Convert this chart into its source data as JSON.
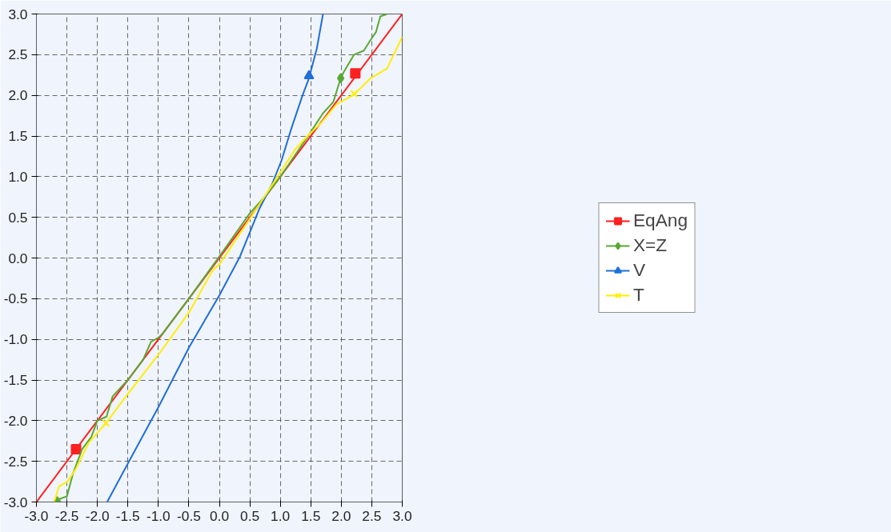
{
  "chart_data": {
    "type": "line",
    "xlim": [
      -3.0,
      3.0
    ],
    "ylim": [
      -3.0,
      3.0
    ],
    "xticks": [
      {
        "value": -3,
        "label": "-3.0"
      },
      {
        "value": -2.5,
        "label": "-2.5"
      },
      {
        "value": -2,
        "label": "-2.0"
      },
      {
        "value": -1.5,
        "label": "-1.5"
      },
      {
        "value": -1,
        "label": "-1.0"
      },
      {
        "value": -0.5,
        "label": "-0.5"
      },
      {
        "value": 0,
        "label": "0.0"
      },
      {
        "value": 0.5,
        "label": "0.5"
      },
      {
        "value": 1,
        "label": "1.0"
      },
      {
        "value": 1.5,
        "label": "1.5"
      },
      {
        "value": 2,
        "label": "2.0"
      },
      {
        "value": 2.5,
        "label": "2.5"
      },
      {
        "value": 3,
        "label": "3.0"
      }
    ],
    "yticks": [
      {
        "value": -3,
        "label": "-3.0"
      },
      {
        "value": -2.5,
        "label": "-2.5"
      },
      {
        "value": -2,
        "label": "-2.0"
      },
      {
        "value": -1.5,
        "label": "-1.5"
      },
      {
        "value": -1,
        "label": "-1.0"
      },
      {
        "value": -0.5,
        "label": "-0.5"
      },
      {
        "value": 0,
        "label": "0.0"
      },
      {
        "value": 0.5,
        "label": "0.5"
      },
      {
        "value": 1,
        "label": "1.0"
      },
      {
        "value": 1.5,
        "label": "1.5"
      },
      {
        "value": 2,
        "label": "2.0"
      },
      {
        "value": 2.5,
        "label": "2.5"
      },
      {
        "value": 3,
        "label": "3.0"
      }
    ],
    "grid": true,
    "legend": "right",
    "line_style": "solid",
    "series": [
      {
        "name": "EqAng",
        "color": "#ff2020",
        "x": [
          -3.0,
          3.0
        ],
        "values": [
          -3.0,
          3.0
        ]
      },
      {
        "type": "scatter",
        "marker": "square",
        "color": "#ff2020",
        "x": [
          -2.35,
          2.23
        ],
        "values": [
          -2.35,
          2.27
        ]
      },
      {
        "name": "X=Z",
        "color": "#5aa832",
        "x": [
          -2.7,
          -2.65,
          -2.5,
          -2.4,
          -2.25,
          -2.1,
          -2.0,
          -1.85,
          -1.75,
          -1.5,
          -1.25,
          -1.12,
          -1.0,
          -0.93,
          -0.5,
          0.0,
          0.5,
          0.8,
          1.0,
          1.2,
          1.5,
          1.7,
          1.87,
          1.99,
          2.05,
          2.21,
          2.37,
          2.48,
          2.57,
          2.64,
          2.75
        ],
        "values": [
          -3.0,
          -2.97,
          -2.93,
          -2.65,
          -2.35,
          -2.2,
          -2.0,
          -1.95,
          -1.7,
          -1.5,
          -1.25,
          -1.03,
          -0.98,
          -0.93,
          -0.5,
          0.02,
          0.55,
          0.8,
          1.0,
          1.22,
          1.55,
          1.78,
          1.92,
          2.21,
          2.3,
          2.5,
          2.55,
          2.68,
          2.78,
          2.97,
          3.0
        ]
      },
      {
        "type": "scatter",
        "marker": "diamond",
        "color": "#5aa832",
        "x": [
          -2.66,
          1.99
        ],
        "values": [
          -2.99,
          2.21
        ]
      },
      {
        "name": "V",
        "color": "#1f6fd8",
        "x": [
          -1.84,
          -1.51,
          -0.99,
          -0.49,
          0.0,
          0.34,
          0.66,
          0.86,
          1.02,
          1.18,
          1.36,
          1.47,
          1.6,
          1.7
        ],
        "values": [
          -3.0,
          -2.54,
          -1.82,
          -1.09,
          -0.46,
          0.02,
          0.61,
          0.9,
          1.2,
          1.59,
          1.99,
          2.21,
          2.58,
          3.0
        ]
      },
      {
        "type": "scatter",
        "marker": "triangle",
        "color": "#1f6fd8",
        "x": [
          1.47
        ],
        "values": [
          2.24
        ]
      },
      {
        "name": "T",
        "color": "#ffee00",
        "x": [
          -2.71,
          -2.63,
          -2.49,
          -2.36,
          -2.14,
          -1.86,
          -1.5,
          -0.99,
          -0.49,
          -0.11,
          0.0,
          0.79,
          1.24,
          1.47,
          1.67,
          1.92,
          2.21,
          2.48,
          2.75,
          3.0
        ],
        "values": [
          -3.0,
          -2.81,
          -2.75,
          -2.6,
          -2.27,
          -2.03,
          -1.67,
          -1.18,
          -0.66,
          -0.15,
          -0.08,
          0.81,
          1.33,
          1.52,
          1.66,
          1.89,
          2.01,
          2.21,
          2.33,
          2.72
        ]
      },
      {
        "type": "scatter",
        "marker": "x",
        "color": "#ffee00",
        "x": [
          -1.86,
          2.21
        ],
        "values": [
          -2.03,
          2.02
        ]
      }
    ]
  }
}
